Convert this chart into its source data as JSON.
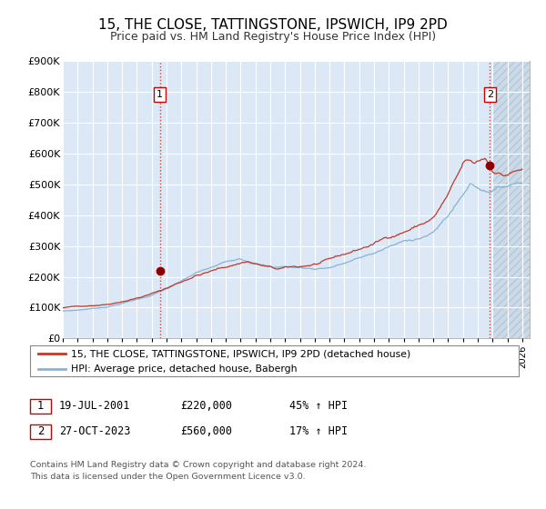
{
  "title": "15, THE CLOSE, TATTINGSTONE, IPSWICH, IP9 2PD",
  "subtitle": "Price paid vs. HM Land Registry's House Price Index (HPI)",
  "ylim": [
    0,
    900000
  ],
  "xlim_start": 1995.0,
  "xlim_end": 2026.5,
  "yticks": [
    0,
    100000,
    200000,
    300000,
    400000,
    500000,
    600000,
    700000,
    800000,
    900000
  ],
  "ytick_labels": [
    "£0",
    "£100K",
    "£200K",
    "£300K",
    "£400K",
    "£500K",
    "£600K",
    "£700K",
    "£800K",
    "£900K"
  ],
  "xticks": [
    1995,
    1996,
    1997,
    1998,
    1999,
    2000,
    2001,
    2002,
    2003,
    2004,
    2005,
    2006,
    2007,
    2008,
    2009,
    2010,
    2011,
    2012,
    2013,
    2014,
    2015,
    2016,
    2017,
    2018,
    2019,
    2020,
    2021,
    2022,
    2023,
    2024,
    2025,
    2026
  ],
  "background_color": "#dce8f5",
  "plot_bg_color": "#dce8f5",
  "grid_color": "#ffffff",
  "line1_color": "#c0392b",
  "line2_color": "#85b4d4",
  "marker_color": "#8b0000",
  "vline_color": "#c0392b",
  "hatch_color": "#c8d8e8",
  "sale1_x": 2001.54,
  "sale1_y": 220000,
  "sale2_x": 2023.82,
  "sale2_y": 560000,
  "hatch_start": 2024.0,
  "legend_line1": "15, THE CLOSE, TATTINGSTONE, IPSWICH, IP9 2PD (detached house)",
  "legend_line2": "HPI: Average price, detached house, Babergh",
  "table_row1": [
    "1",
    "19-JUL-2001",
    "£220,000",
    "45% ↑ HPI"
  ],
  "table_row2": [
    "2",
    "27-OCT-2023",
    "£560,000",
    "17% ↑ HPI"
  ],
  "footnote1": "Contains HM Land Registry data © Crown copyright and database right 2024.",
  "footnote2": "This data is licensed under the Open Government Licence v3.0.",
  "title_fontsize": 11,
  "subtitle_fontsize": 9
}
